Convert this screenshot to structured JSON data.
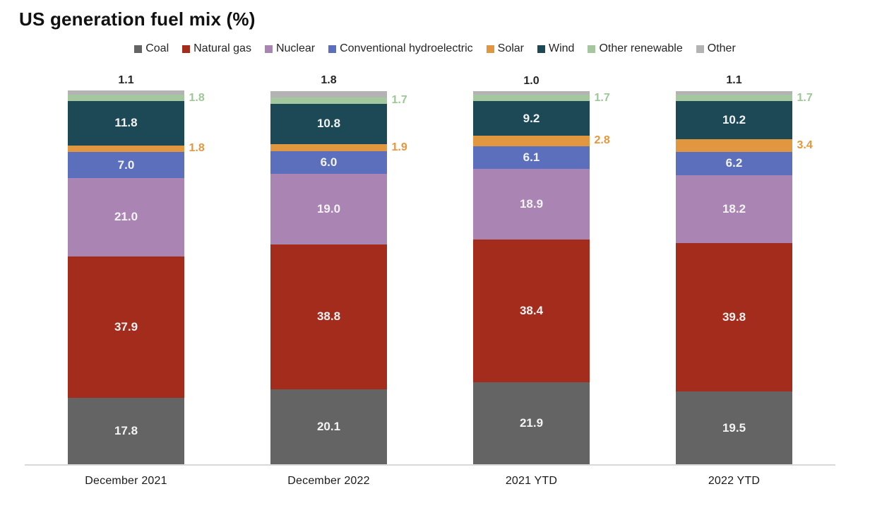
{
  "header": {
    "title": "US generation fuel mix (%)"
  },
  "colors": {
    "axis_line": "#d9d9d9",
    "inside_label_text": "#f3f3f3",
    "above_label_text": "#262626",
    "legend_text": "#262626"
  },
  "chart_data": {
    "type": "bar",
    "stacked": true,
    "title": "US generation fuel mix (%)",
    "xlabel": "",
    "ylabel": "",
    "ylim": [
      0,
      100.2
    ],
    "grid": false,
    "legend_position": "top",
    "value_format": "one_decimal",
    "categories": [
      "December 2021",
      "December 2022",
      "2021 YTD",
      "2022 YTD"
    ],
    "series": [
      {
        "name": "Coal",
        "color": "#646464",
        "values": [
          17.8,
          20.1,
          21.9,
          19.5
        ],
        "label_style": "inside"
      },
      {
        "name": "Natural gas",
        "color": "#a32c1c",
        "values": [
          37.9,
          38.8,
          38.4,
          39.8
        ],
        "label_style": "inside"
      },
      {
        "name": "Nuclear",
        "color": "#aa85b4",
        "values": [
          21.0,
          19.0,
          18.9,
          18.2
        ],
        "label_style": "inside"
      },
      {
        "name": "Conventional hydroelectric",
        "color": "#5b6fbc",
        "values": [
          7.0,
          6.0,
          6.1,
          6.2
        ],
        "label_style": "inside"
      },
      {
        "name": "Solar",
        "color": "#e0973f",
        "values": [
          1.8,
          1.9,
          2.8,
          3.4
        ],
        "label_style": "outside-right",
        "label_color": "#e8963c"
      },
      {
        "name": "Wind",
        "color": "#1d4956",
        "values": [
          11.8,
          10.8,
          9.2,
          10.2
        ],
        "label_style": "inside"
      },
      {
        "name": "Other renewable",
        "color": "#a5c7a0",
        "values": [
          1.8,
          1.7,
          1.7,
          1.7
        ],
        "label_style": "outside-right",
        "label_color": "#9cc897"
      },
      {
        "name": "Other",
        "color": "#b3b3b3",
        "values": [
          1.1,
          1.8,
          1.0,
          1.1
        ],
        "label_style": "above"
      }
    ]
  }
}
